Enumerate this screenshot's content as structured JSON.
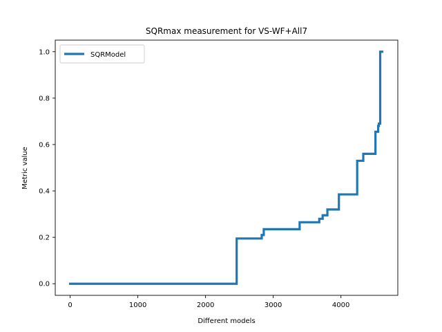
{
  "chart_data": {
    "type": "line",
    "title": "SQRmax measurement for VS-WF+All7",
    "xlabel": "Different models",
    "ylabel": "Metric value",
    "xlim": [
      -220,
      4840
    ],
    "ylim": [
      -0.05,
      1.05
    ],
    "xticks": [
      0,
      1000,
      2000,
      3000,
      4000
    ],
    "xtick_labels": [
      "0",
      "1000",
      "2000",
      "3000",
      "4000"
    ],
    "yticks": [
      0.0,
      0.2,
      0.4,
      0.6,
      0.8,
      1.0
    ],
    "ytick_labels": [
      "0.0",
      "0.2",
      "0.4",
      "0.6",
      "0.8",
      "1.0"
    ],
    "grid": false,
    "legend_position": "top-left",
    "series": [
      {
        "name": "SQRModel",
        "color": "#1f77b4",
        "step": "post",
        "x": [
          0,
          2460,
          2830,
          2860,
          3210,
          3390,
          3680,
          3730,
          3800,
          3970,
          4240,
          4330,
          4510,
          4550,
          4560,
          4580,
          4610
        ],
        "y": [
          0.0,
          0.195,
          0.21,
          0.235,
          0.235,
          0.265,
          0.28,
          0.295,
          0.32,
          0.385,
          0.53,
          0.56,
          0.655,
          0.68,
          0.69,
          1.0,
          1.0
        ]
      }
    ]
  }
}
